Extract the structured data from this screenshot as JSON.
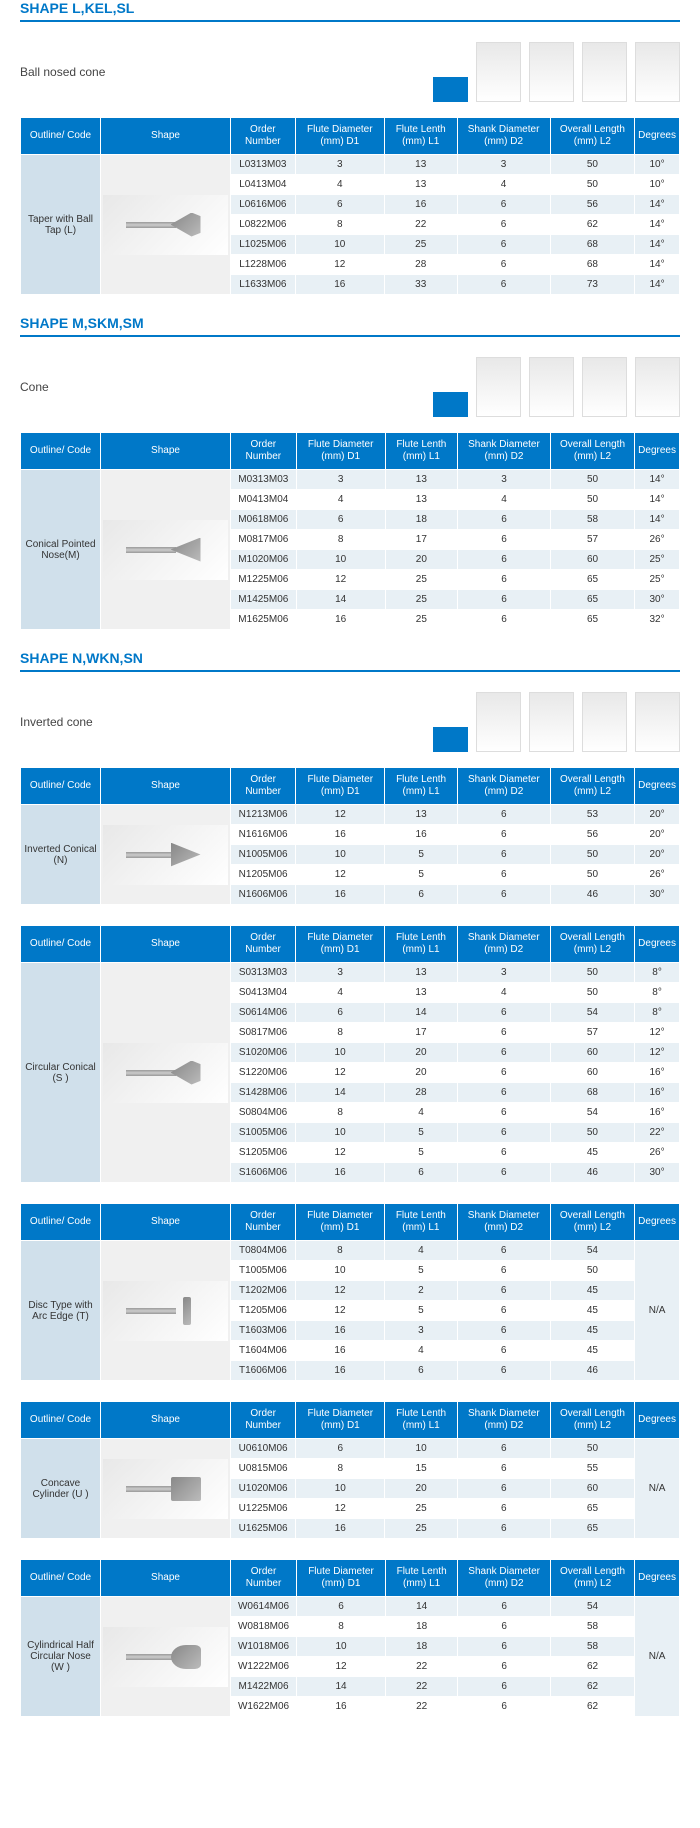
{
  "headers": {
    "outline": "Outline/ Code",
    "shape": "Shape",
    "order": "Order Number",
    "d1": "Flute Diameter (mm) D1",
    "l1": "Flute Lenth (mm) L1",
    "d2": "Shank Diameter (mm) D2",
    "l2": "Overall Length (mm) L2",
    "degrees": "Degrees"
  },
  "sections": [
    {
      "title": "SHAPE L,KEL,SL",
      "subtitle": "Ball  nosed cone",
      "outline": "Taper with Ball Tap (L)",
      "burr_class": "cone",
      "rows": [
        {
          "order": "L0313M03",
          "d1": "3",
          "l1": "13",
          "d2": "3",
          "l2": "50",
          "deg": "10°"
        },
        {
          "order": "L0413M04",
          "d1": "4",
          "l1": "13",
          "d2": "4",
          "l2": "50",
          "deg": "10°"
        },
        {
          "order": "L0616M06",
          "d1": "6",
          "l1": "16",
          "d2": "6",
          "l2": "56",
          "deg": "14°"
        },
        {
          "order": "L0822M06",
          "d1": "8",
          "l1": "22",
          "d2": "6",
          "l2": "62",
          "deg": "14°"
        },
        {
          "order": "L1025M06",
          "d1": "10",
          "l1": "25",
          "d2": "6",
          "l2": "68",
          "deg": "14°"
        },
        {
          "order": "L1228M06",
          "d1": "12",
          "l1": "28",
          "d2": "6",
          "l2": "68",
          "deg": "14°"
        },
        {
          "order": "L1633M06",
          "d1": "16",
          "l1": "33",
          "d2": "6",
          "l2": "73",
          "deg": "14°"
        }
      ]
    },
    {
      "title": "SHAPE M,SKM,SM",
      "subtitle": "Cone",
      "outline": "Conical Pointed Nose(M)",
      "burr_class": "pointed",
      "rows": [
        {
          "order": "M0313M03",
          "d1": "3",
          "l1": "13",
          "d2": "3",
          "l2": "50",
          "deg": "14°"
        },
        {
          "order": "M0413M04",
          "d1": "4",
          "l1": "13",
          "d2": "4",
          "l2": "50",
          "deg": "14°"
        },
        {
          "order": "M0618M06",
          "d1": "6",
          "l1": "18",
          "d2": "6",
          "l2": "58",
          "deg": "14°"
        },
        {
          "order": "M0817M06",
          "d1": "8",
          "l1": "17",
          "d2": "6",
          "l2": "57",
          "deg": "26°"
        },
        {
          "order": "M1020M06",
          "d1": "10",
          "l1": "20",
          "d2": "6",
          "l2": "60",
          "deg": "25°"
        },
        {
          "order": "M1225M06",
          "d1": "12",
          "l1": "25",
          "d2": "6",
          "l2": "65",
          "deg": "25°"
        },
        {
          "order": "M1425M06",
          "d1": "14",
          "l1": "25",
          "d2": "6",
          "l2": "65",
          "deg": "30°"
        },
        {
          "order": "M1625M06",
          "d1": "16",
          "l1": "25",
          "d2": "6",
          "l2": "65",
          "deg": "32°"
        }
      ]
    },
    {
      "title": "SHAPE N,WKN,SN",
      "subtitle": "Inverted cone",
      "outline": "Inverted Conical (N)",
      "burr_class": "inverted",
      "rows": [
        {
          "order": "N1213M06",
          "d1": "12",
          "l1": "13",
          "d2": "6",
          "l2": "53",
          "deg": "20°"
        },
        {
          "order": "N1616M06",
          "d1": "16",
          "l1": "16",
          "d2": "6",
          "l2": "56",
          "deg": "20°"
        },
        {
          "order": "N1005M06",
          "d1": "10",
          "l1": "5",
          "d2": "6",
          "l2": "50",
          "deg": "20°"
        },
        {
          "order": "N1205M06",
          "d1": "12",
          "l1": "5",
          "d2": "6",
          "l2": "50",
          "deg": "26°"
        },
        {
          "order": "N1606M06",
          "d1": "16",
          "l1": "6",
          "d2": "6",
          "l2": "46",
          "deg": "30°"
        }
      ]
    },
    {
      "title": "",
      "subtitle": "",
      "outline": "Circular Conical (S )",
      "burr_class": "cone",
      "rows": [
        {
          "order": "S0313M03",
          "d1": "3",
          "l1": "13",
          "d2": "3",
          "l2": "50",
          "deg": "8°"
        },
        {
          "order": "S0413M04",
          "d1": "4",
          "l1": "13",
          "d2": "4",
          "l2": "50",
          "deg": "8°"
        },
        {
          "order": "S0614M06",
          "d1": "6",
          "l1": "14",
          "d2": "6",
          "l2": "54",
          "deg": "8°"
        },
        {
          "order": "S0817M06",
          "d1": "8",
          "l1": "17",
          "d2": "6",
          "l2": "57",
          "deg": "12°"
        },
        {
          "order": "S1020M06",
          "d1": "10",
          "l1": "20",
          "d2": "6",
          "l2": "60",
          "deg": "12°"
        },
        {
          "order": "S1220M06",
          "d1": "12",
          "l1": "20",
          "d2": "6",
          "l2": "60",
          "deg": "16°"
        },
        {
          "order": "S1428M06",
          "d1": "14",
          "l1": "28",
          "d2": "6",
          "l2": "68",
          "deg": "16°"
        },
        {
          "order": "S0804M06",
          "d1": "8",
          "l1": "4",
          "d2": "6",
          "l2": "54",
          "deg": "16°"
        },
        {
          "order": "S1005M06",
          "d1": "10",
          "l1": "5",
          "d2": "6",
          "l2": "50",
          "deg": "22°"
        },
        {
          "order": "S1205M06",
          "d1": "12",
          "l1": "5",
          "d2": "6",
          "l2": "45",
          "deg": "26°"
        },
        {
          "order": "S1606M06",
          "d1": "16",
          "l1": "6",
          "d2": "6",
          "l2": "46",
          "deg": "30°"
        }
      ]
    },
    {
      "title": "",
      "subtitle": "",
      "outline": "Disc Type with Arc Edge (T)",
      "burr_class": "disc",
      "merged_degrees": "N/A",
      "rows": [
        {
          "order": "T0804M06",
          "d1": "8",
          "l1": "4",
          "d2": "6",
          "l2": "54"
        },
        {
          "order": "T1005M06",
          "d1": "10",
          "l1": "5",
          "d2": "6",
          "l2": "50"
        },
        {
          "order": "T1202M06",
          "d1": "12",
          "l1": "2",
          "d2": "6",
          "l2": "45"
        },
        {
          "order": "T1205M06",
          "d1": "12",
          "l1": "5",
          "d2": "6",
          "l2": "45"
        },
        {
          "order": "T1603M06",
          "d1": "16",
          "l1": "3",
          "d2": "6",
          "l2": "45"
        },
        {
          "order": "T1604M06",
          "d1": "16",
          "l1": "4",
          "d2": "6",
          "l2": "45"
        },
        {
          "order": "T1606M06",
          "d1": "16",
          "l1": "6",
          "d2": "6",
          "l2": "46"
        }
      ]
    },
    {
      "title": "",
      "subtitle": "",
      "outline": "Concave Cylinder (U )",
      "burr_class": "cylinder",
      "merged_degrees": "N/A",
      "rows": [
        {
          "order": "U0610M06",
          "d1": "6",
          "l1": "10",
          "d2": "6",
          "l2": "50"
        },
        {
          "order": "U0815M06",
          "d1": "8",
          "l1": "15",
          "d2": "6",
          "l2": "55"
        },
        {
          "order": "U1020M06",
          "d1": "10",
          "l1": "20",
          "d2": "6",
          "l2": "60"
        },
        {
          "order": "U1225M06",
          "d1": "12",
          "l1": "25",
          "d2": "6",
          "l2": "65"
        },
        {
          "order": "U1625M06",
          "d1": "16",
          "l1": "25",
          "d2": "6",
          "l2": "65"
        }
      ]
    },
    {
      "title": "",
      "subtitle": "",
      "outline": "Cylindrical Half Circular Nose (W )",
      "burr_class": "ball",
      "merged_degrees": "N/A",
      "rows": [
        {
          "order": "W0614M06",
          "d1": "6",
          "l1": "14",
          "d2": "6",
          "l2": "54"
        },
        {
          "order": "W0818M06",
          "d1": "8",
          "l1": "18",
          "d2": "6",
          "l2": "58"
        },
        {
          "order": "W1018M06",
          "d1": "10",
          "l1": "18",
          "d2": "6",
          "l2": "58"
        },
        {
          "order": "W1222M06",
          "d1": "12",
          "l1": "22",
          "d2": "6",
          "l2": "62"
        },
        {
          "order": "M1422M06",
          "d1": "14",
          "l1": "22",
          "d2": "6",
          "l2": "62"
        },
        {
          "order": "W1622M06",
          "d1": "16",
          "l1": "22",
          "d2": "6",
          "l2": "62"
        }
      ]
    }
  ],
  "colors": {
    "primary": "#0078c8",
    "row_odd": "#e8f0f5",
    "row_even": "#ffffff",
    "outline_bg": "#d0e0eb"
  }
}
